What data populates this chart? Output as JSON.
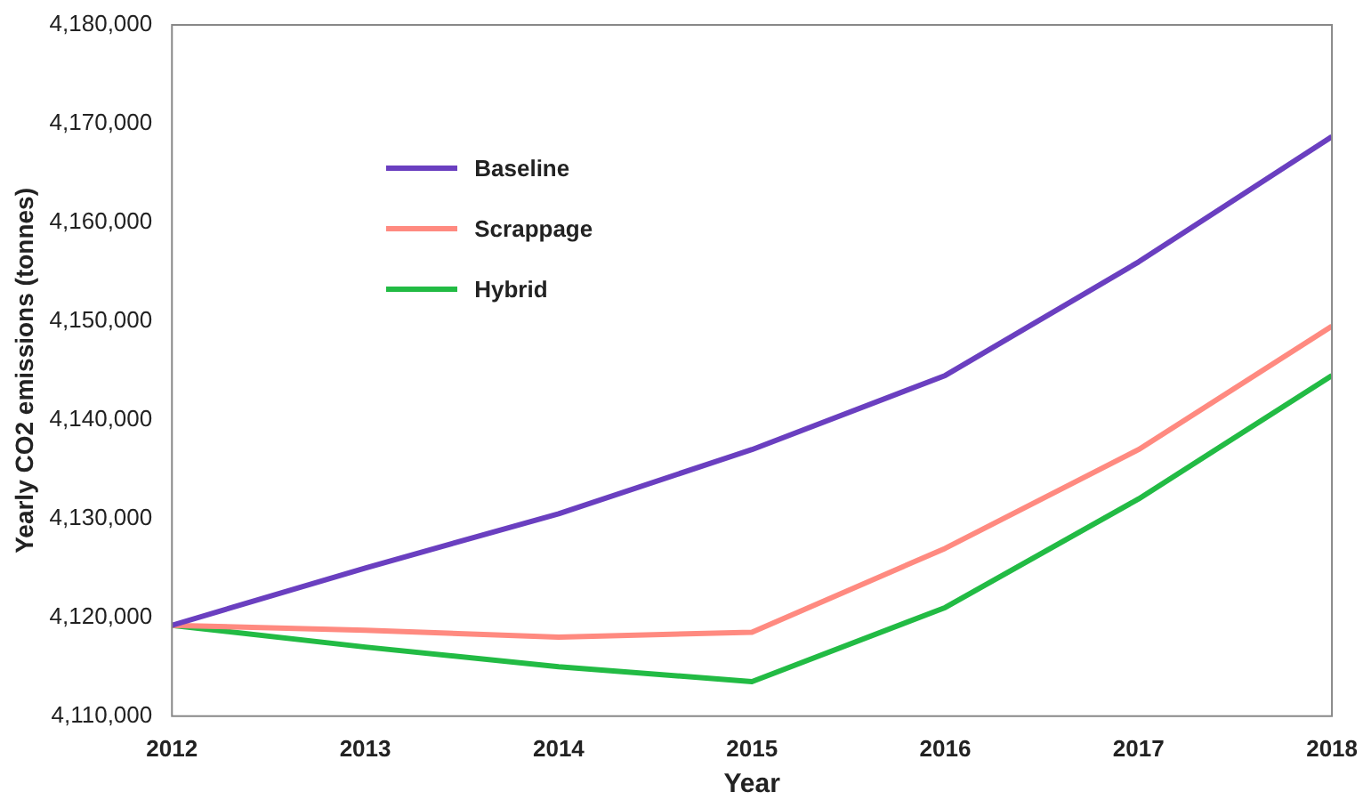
{
  "chart_data": {
    "type": "line",
    "xlabel": "Year",
    "ylabel": "Yearly CO2 emissions (tonnes)",
    "x": [
      2012,
      2013,
      2014,
      2015,
      2016,
      2017,
      2018
    ],
    "series": [
      {
        "name": "Baseline",
        "color": "#6a3fc0",
        "values": [
          4119200,
          4125000,
          4130500,
          4137000,
          4144500,
          4156000,
          4168700
        ]
      },
      {
        "name": "Scrappage",
        "color": "#ff8a80",
        "values": [
          4119200,
          4118700,
          4118000,
          4118500,
          4127000,
          4137000,
          4149500
        ]
      },
      {
        "name": "Hybrid",
        "color": "#22bb44",
        "values": [
          4119200,
          4117000,
          4115000,
          4113500,
          4121000,
          4132000,
          4144500
        ]
      }
    ],
    "xlim": [
      2012,
      2018
    ],
    "xticks": [
      2012,
      2013,
      2014,
      2015,
      2016,
      2017,
      2018
    ],
    "ylim": [
      4110000,
      4180000
    ],
    "yticks": [
      {
        "value": 4110000,
        "label": "4,110,000"
      },
      {
        "value": 4120000,
        "label": "4,120,000"
      },
      {
        "value": 4130000,
        "label": "4,130,000"
      },
      {
        "value": 4140000,
        "label": "4,140,000"
      },
      {
        "value": 4150000,
        "label": "4,150,000"
      },
      {
        "value": 4160000,
        "label": "4,160,000"
      },
      {
        "value": 4170000,
        "label": "4,170,000"
      },
      {
        "value": 4180000,
        "label": "4,180,000"
      }
    ],
    "grid": false,
    "legend": "top left",
    "marker": "none",
    "line_style": "solid"
  }
}
